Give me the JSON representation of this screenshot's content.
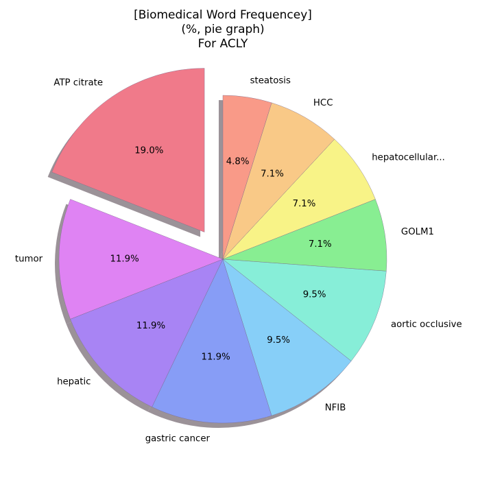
{
  "chart_data": {
    "type": "pie",
    "title_lines": [
      "[Biomedical Word Frequencey]",
      "(%, pie graph)",
      "For ACLY"
    ],
    "slices": [
      {
        "label": "ATP citrate",
        "value": 19.0,
        "pct_label": "19.0%",
        "color": "#f07a8a",
        "exploded": true
      },
      {
        "label": "tumor",
        "value": 11.9,
        "pct_label": "11.9%",
        "color": "#df83f3",
        "exploded": false
      },
      {
        "label": "hepatic",
        "value": 11.9,
        "pct_label": "11.9%",
        "color": "#a884f4",
        "exploded": false
      },
      {
        "label": "gastric cancer",
        "value": 11.9,
        "pct_label": "11.9%",
        "color": "#879df6",
        "exploded": false
      },
      {
        "label": "NFIB",
        "value": 9.5,
        "pct_label": "9.5%",
        "color": "#87cff8",
        "exploded": false
      },
      {
        "label": "aortic occlusive",
        "value": 9.5,
        "pct_label": "9.5%",
        "color": "#87eed8",
        "exploded": false
      },
      {
        "label": "GOLM1",
        "value": 7.1,
        "pct_label": "7.1%",
        "color": "#88ee92",
        "exploded": false
      },
      {
        "label": "hepatocellular...",
        "value": 7.1,
        "pct_label": "7.1%",
        "color": "#f8f387",
        "exploded": false
      },
      {
        "label": "HCC",
        "value": 7.1,
        "pct_label": "7.1%",
        "color": "#f9c987",
        "exploded": false
      },
      {
        "label": "steatosis",
        "value": 4.8,
        "pct_label": "4.8%",
        "color": "#f99a88",
        "exploded": false
      }
    ],
    "start_angle_deg": 90,
    "direction": "counterclockwise",
    "shadow": true,
    "shadow_color": "#9b9298"
  }
}
